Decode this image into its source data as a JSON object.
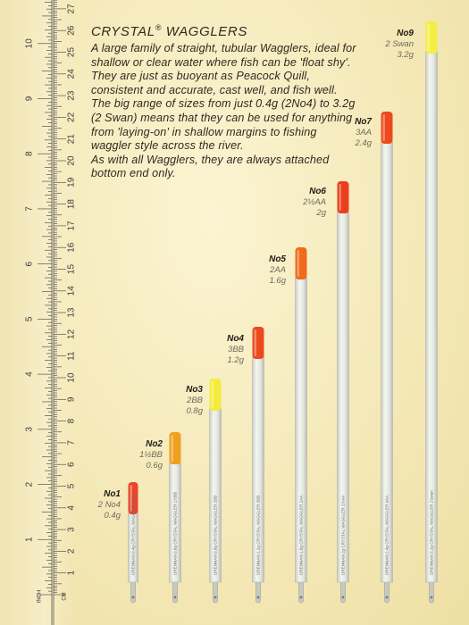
{
  "ruler": {
    "inch_label": "INCH",
    "cm_label": "CM",
    "inch_numbers": [
      "1",
      "2",
      "3",
      "4",
      "5",
      "6",
      "7",
      "8",
      "9",
      "10"
    ],
    "cm_numbers": [
      "1",
      "2",
      "3",
      "4",
      "5",
      "6",
      "7",
      "8",
      "9",
      "10",
      "11",
      "12",
      "13",
      "14",
      "15",
      "16",
      "17",
      "18",
      "19",
      "20",
      "21",
      "22",
      "23",
      "24",
      "25",
      "26",
      "27"
    ]
  },
  "description": {
    "title": "CRYSTAL",
    "title_mark": "®",
    "title_rest": " WAGGLERS",
    "paragraphs": [
      "A large family of straight, tubular Wagglers, ideal for shallow or clear water where fish can be 'float shy'.",
      "They are just as buoyant as Peacock Quill, consistent and accurate, cast well, and fish well.",
      "The big range of sizes from just 0.4g (2No4) to 3.2g (2 Swan) means that they can be used for anything from 'laying-on' in shallow margins to fishing waggler style across the river.",
      "As with all Wagglers, they are always attached bottom end only."
    ]
  },
  "floats": [
    {
      "no": "No1",
      "shot": "2 No4",
      "weight": "0.4g",
      "tip_color": "#e8452a",
      "print": "DRENNAN  0.4g  CRYSTAL WAGGLER  2No4"
    },
    {
      "no": "No2",
      "shot": "1½BB",
      "weight": "0.6g",
      "tip_color": "#f0a020",
      "print": "DRENNAN  0.6g  CRYSTAL WAGGLER  1½BB"
    },
    {
      "no": "No3",
      "shot": "2BB",
      "weight": "0.8g",
      "tip_color": "#f4ec3c",
      "print": "DRENNAN  0.8g  CRYSTAL WAGGLER  2BB"
    },
    {
      "no": "No4",
      "shot": "3BB",
      "weight": "1.2g",
      "tip_color": "#ec4a1e",
      "print": "DRENNAN  1.2g  CRYSTAL WAGGLER  3BB"
    },
    {
      "no": "No5",
      "shot": "2AA",
      "weight": "1.6g",
      "tip_color": "#f06a1c",
      "print": "DRENNAN  1.6g  CRYSTAL WAGGLER  2AA"
    },
    {
      "no": "No6",
      "shot": "2½AA",
      "weight": "2g",
      "tip_color": "#e8401c",
      "print": "DRENNAN  2g  CRYSTAL WAGGLER  2½AA"
    },
    {
      "no": "No7",
      "shot": "3AA",
      "weight": "2.4g",
      "tip_color": "#ec4a1c",
      "print": "DRENNAN  2.4g  CRYSTAL WAGGLER  3AA"
    },
    {
      "no": "No9",
      "shot": "2 Swan",
      "weight": "3.2g",
      "tip_color": "#f4ee44",
      "print": "DRENNAN  3.2g  CRYSTAL WAGGLER  2Swan"
    }
  ]
}
